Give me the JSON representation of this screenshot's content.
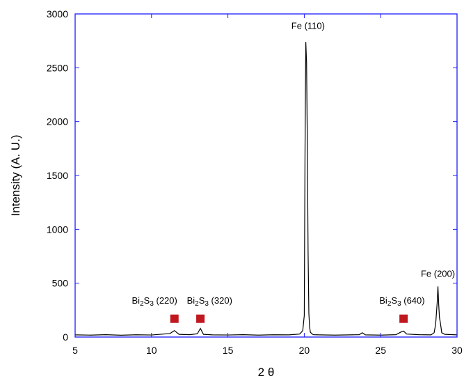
{
  "chart_data": {
    "type": "line",
    "title": "",
    "xlabel": "2 θ",
    "ylabel": "Intensity (A. U.)",
    "xlim": [
      5,
      30
    ],
    "ylim": [
      0,
      3000
    ],
    "xticks": [
      5,
      10,
      15,
      20,
      25,
      30
    ],
    "yticks": [
      0,
      500,
      1000,
      1500,
      2000,
      2500,
      3000
    ],
    "grid": false,
    "colors": {
      "line": "#000000",
      "frame": "#1a1aff",
      "marker": "#c0181f"
    },
    "series": [
      {
        "x": [
          5.0,
          6.0,
          7.0,
          8.0,
          9.0,
          10.0,
          10.8,
          11.2,
          11.5,
          11.8,
          12.5,
          13.0,
          13.2,
          13.4,
          14.0,
          15.0,
          16.0,
          17.0,
          18.0,
          19.0,
          19.7,
          19.9,
          20.0,
          20.05,
          20.1,
          20.15,
          20.2,
          20.25,
          20.3,
          20.35,
          20.4,
          20.5,
          20.6,
          21.0,
          22.0,
          23.0,
          23.6,
          23.8,
          24.0,
          25.0,
          26.0,
          26.3,
          26.5,
          26.7,
          27.5,
          28.3,
          28.5,
          28.6,
          28.7,
          28.75,
          28.8,
          28.85,
          28.9,
          29.0,
          29.2,
          30.0
        ],
        "y": [
          20,
          18,
          22,
          17,
          21,
          19,
          28,
          32,
          60,
          25,
          22,
          30,
          80,
          25,
          20,
          19,
          22,
          18,
          21,
          20,
          28,
          60,
          200,
          1750,
          2740,
          2550,
          1800,
          780,
          220,
          90,
          45,
          30,
          22,
          20,
          18,
          20,
          22,
          40,
          20,
          18,
          22,
          45,
          55,
          28,
          22,
          20,
          40,
          120,
          320,
          470,
          300,
          180,
          140,
          40,
          25,
          20
        ]
      }
    ],
    "annotations": [
      {
        "label": "Fe (110)",
        "x": 20.25,
        "y": 2860
      },
      {
        "label": "Fe (200)",
        "x": 28.75,
        "y": 560
      },
      {
        "label": "(220)",
        "compound": "Bi",
        "sub1": "2",
        "elem2": "S",
        "sub2": "3",
        "x": 10.2,
        "y": 310,
        "marker_x": 11.5,
        "marker_y": 170
      },
      {
        "label": "(320)",
        "compound": "Bi",
        "sub1": "2",
        "elem2": "S",
        "sub2": "3",
        "x": 13.8,
        "y": 310,
        "marker_x": 13.2,
        "marker_y": 170
      },
      {
        "label": "(640)",
        "compound": "Bi",
        "sub1": "2",
        "elem2": "S",
        "sub2": "3",
        "x": 26.4,
        "y": 310,
        "marker_x": 26.5,
        "marker_y": 170
      }
    ]
  }
}
